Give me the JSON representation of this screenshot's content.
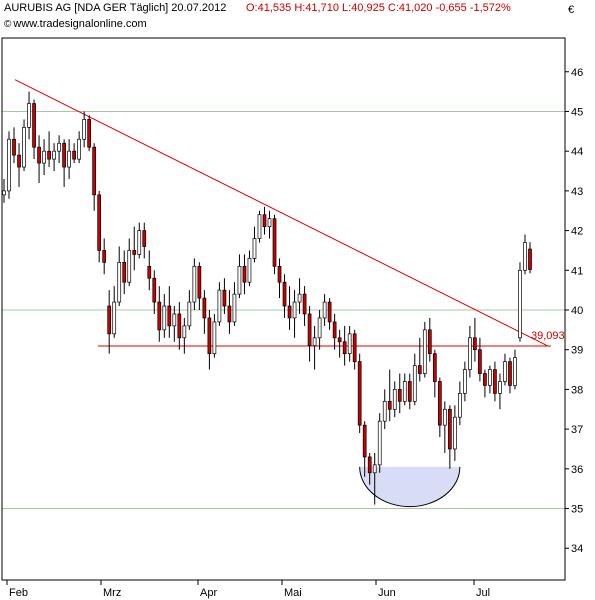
{
  "header": {
    "title": "AURUBIS AG [NDA GER  Täglich] 20.07.2012",
    "quote": "O:41,535 H:41,710 L:40,925 C:41,020 -0,655 -1,572%",
    "source": "www.tradesignalonline.com",
    "currency": "€"
  },
  "chart_data": {
    "type": "candlestick",
    "title": "AURUBIS AG [NDA GER  Täglich] 20.07.2012",
    "ylim": [
      33.2,
      46.8
    ],
    "yticks": [
      "34",
      "35",
      "36",
      "37",
      "38",
      "39",
      "40",
      "41",
      "42",
      "43",
      "44",
      "45",
      "46"
    ],
    "xticks": [
      "Feb",
      "Mrz",
      "Apr",
      "Mai",
      "Jun",
      "Jul"
    ],
    "grid_levels": [
      35,
      40,
      45
    ],
    "last": {
      "open": 41.535,
      "high": 41.71,
      "low": 40.925,
      "close": 41.02,
      "change": -0.655,
      "change_pct": -1.572
    },
    "support_level": 39.093,
    "support_label": "39,093",
    "colors": {
      "up": "#ffffff",
      "down": "#cc0000",
      "wick": "#000000",
      "trendline": "#dd0000",
      "grid": "#a6c8a6",
      "rounding": "#d8dcf4"
    },
    "candles": [
      [
        42.9,
        43.3,
        42.7,
        43.0
      ],
      [
        43.0,
        44.5,
        42.8,
        44.3
      ],
      [
        44.3,
        44.6,
        43.7,
        43.9
      ],
      [
        43.9,
        44.2,
        43.1,
        43.6
      ],
      [
        43.6,
        44.8,
        43.5,
        44.6
      ],
      [
        44.6,
        45.5,
        44.3,
        45.2
      ],
      [
        45.2,
        45.3,
        43.8,
        44.1
      ],
      [
        44.1,
        44.4,
        43.2,
        43.7
      ],
      [
        43.7,
        44.3,
        43.4,
        44.0
      ],
      [
        44.0,
        44.5,
        43.6,
        43.8
      ],
      [
        43.8,
        44.2,
        43.5,
        44.0
      ],
      [
        44.0,
        44.4,
        43.7,
        44.2
      ],
      [
        44.2,
        44.3,
        43.1,
        43.6
      ],
      [
        43.6,
        44.3,
        43.3,
        44.0
      ],
      [
        44.0,
        44.2,
        43.7,
        43.8
      ],
      [
        43.8,
        44.5,
        43.7,
        44.3
      ],
      [
        44.3,
        45.0,
        44.1,
        44.8
      ],
      [
        44.8,
        44.9,
        44.0,
        44.1
      ],
      [
        44.1,
        44.2,
        42.5,
        42.9
      ],
      [
        42.9,
        43.0,
        41.2,
        41.5
      ],
      [
        41.5,
        41.8,
        40.9,
        41.2
      ],
      [
        40.1,
        40.5,
        38.9,
        39.4
      ],
      [
        39.4,
        40.6,
        39.3,
        40.2
      ],
      [
        40.2,
        41.6,
        40.1,
        41.2
      ],
      [
        41.2,
        41.5,
        40.4,
        40.7
      ],
      [
        40.7,
        41.8,
        40.6,
        41.5
      ],
      [
        41.5,
        42.1,
        41.0,
        41.4
      ],
      [
        41.4,
        42.2,
        41.3,
        42.0
      ],
      [
        42.0,
        42.2,
        41.3,
        41.6
      ],
      [
        41.1,
        41.5,
        40.5,
        40.8
      ],
      [
        40.8,
        41.0,
        39.9,
        40.2
      ],
      [
        40.2,
        40.6,
        39.2,
        39.5
      ],
      [
        39.5,
        40.4,
        39.3,
        40.1
      ],
      [
        40.1,
        40.6,
        39.3,
        39.6
      ],
      [
        39.6,
        40.1,
        39.2,
        39.9
      ],
      [
        39.9,
        40.2,
        39.0,
        39.3
      ],
      [
        39.3,
        39.8,
        38.9,
        39.6
      ],
      [
        39.6,
        40.5,
        39.5,
        40.2
      ],
      [
        40.2,
        41.3,
        40.0,
        41.1
      ],
      [
        41.1,
        41.2,
        40.0,
        40.3
      ],
      [
        40.3,
        40.5,
        39.4,
        39.8
      ],
      [
        39.8,
        40.0,
        38.5,
        38.9
      ],
      [
        38.9,
        39.9,
        38.8,
        39.7
      ],
      [
        39.7,
        40.7,
        39.6,
        40.5
      ],
      [
        40.5,
        40.8,
        39.9,
        40.1
      ],
      [
        40.1,
        40.5,
        39.4,
        39.7
      ],
      [
        39.7,
        40.7,
        39.6,
        40.4
      ],
      [
        40.4,
        41.4,
        40.3,
        41.1
      ],
      [
        41.1,
        41.4,
        40.4,
        40.7
      ],
      [
        40.7,
        41.5,
        40.6,
        41.3
      ],
      [
        41.3,
        42.1,
        41.2,
        41.8
      ],
      [
        41.8,
        42.5,
        41.7,
        42.4
      ],
      [
        42.4,
        42.6,
        41.9,
        42.1
      ],
      [
        42.1,
        42.5,
        41.8,
        42.3
      ],
      [
        42.3,
        42.4,
        40.9,
        41.1
      ],
      [
        41.1,
        41.3,
        40.3,
        40.7
      ],
      [
        40.7,
        40.9,
        39.8,
        40.1
      ],
      [
        40.1,
        40.6,
        39.5,
        39.8
      ],
      [
        39.8,
        40.5,
        39.3,
        40.2
      ],
      [
        40.2,
        40.8,
        39.9,
        40.4
      ],
      [
        40.4,
        40.6,
        39.6,
        39.9
      ],
      [
        39.9,
        40.1,
        38.7,
        39.1
      ],
      [
        39.1,
        39.6,
        38.5,
        39.3
      ],
      [
        39.3,
        40.0,
        39.0,
        39.8
      ],
      [
        39.8,
        40.4,
        39.6,
        40.2
      ],
      [
        40.2,
        40.3,
        39.5,
        39.7
      ],
      [
        39.7,
        39.9,
        39.0,
        39.3
      ],
      [
        39.3,
        39.5,
        38.8,
        39.2
      ],
      [
        39.2,
        39.6,
        38.6,
        38.9
      ],
      [
        38.9,
        39.6,
        38.7,
        39.4
      ],
      [
        39.4,
        39.5,
        38.5,
        38.7
      ],
      [
        38.7,
        38.9,
        36.9,
        37.1
      ],
      [
        37.1,
        37.2,
        35.8,
        36.3
      ],
      [
        36.3,
        36.4,
        35.6,
        35.9
      ],
      [
        35.9,
        36.4,
        35.1,
        36.1
      ],
      [
        36.1,
        37.4,
        35.9,
        37.2
      ],
      [
        37.2,
        38.0,
        37.0,
        37.7
      ],
      [
        37.7,
        38.5,
        37.2,
        37.5
      ],
      [
        37.5,
        38.2,
        37.3,
        38.0
      ],
      [
        38.0,
        38.4,
        37.4,
        37.7
      ],
      [
        37.7,
        38.4,
        37.6,
        38.2
      ],
      [
        38.2,
        38.4,
        37.5,
        37.7
      ],
      [
        37.7,
        38.9,
        37.6,
        38.6
      ],
      [
        38.6,
        39.3,
        38.2,
        38.4
      ],
      [
        38.4,
        39.7,
        38.3,
        39.5
      ],
      [
        39.5,
        39.8,
        38.7,
        38.9
      ],
      [
        38.9,
        39.0,
        37.8,
        38.2
      ],
      [
        38.2,
        38.3,
        36.8,
        37.1
      ],
      [
        37.1,
        37.7,
        36.4,
        37.5
      ],
      [
        37.5,
        37.6,
        36.0,
        36.5
      ],
      [
        36.5,
        37.6,
        36.2,
        37.3
      ],
      [
        37.3,
        38.2,
        37.1,
        37.9
      ],
      [
        37.9,
        38.7,
        37.7,
        38.5
      ],
      [
        38.5,
        39.6,
        38.3,
        39.3
      ],
      [
        39.3,
        39.8,
        38.7,
        39.0
      ],
      [
        39.0,
        39.3,
        38.2,
        38.4
      ],
      [
        38.4,
        38.5,
        37.8,
        38.1
      ],
      [
        38.1,
        38.6,
        37.9,
        38.5
      ],
      [
        38.5,
        38.7,
        37.7,
        37.9
      ],
      [
        37.9,
        38.4,
        37.5,
        38.2
      ],
      [
        38.2,
        38.9,
        38.1,
        38.7
      ],
      [
        38.7,
        38.8,
        37.9,
        38.1
      ],
      [
        38.1,
        39.0,
        38.0,
        38.8
      ],
      [
        39.3,
        41.2,
        39.2,
        41.0
      ],
      [
        41.0,
        41.9,
        40.9,
        41.7
      ],
      [
        41.535,
        41.71,
        40.925,
        41.02
      ]
    ]
  }
}
